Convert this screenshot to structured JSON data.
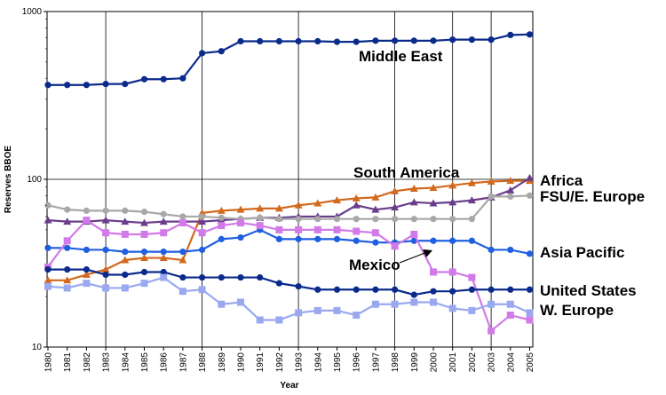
{
  "chart_data": {
    "type": "line",
    "title": "",
    "xlabel": "Year",
    "ylabel": "Reserves BBOE",
    "yscale": "log",
    "ylim": [
      10,
      1000
    ],
    "y_ticks": [
      "10",
      "100",
      "1000"
    ],
    "grid": "vertical major lines",
    "legend": "direct labels on chart",
    "x": [
      "1980",
      "1981",
      "1982",
      "1983",
      "1984",
      "1985",
      "1986",
      "1987",
      "1988",
      "1989",
      "1990",
      "1991",
      "1992",
      "1993",
      "1994",
      "1995",
      "1996",
      "1997",
      "1998",
      "1999",
      "2000",
      "2001",
      "2002",
      "2003",
      "2004",
      "2005"
    ],
    "series": [
      {
        "name": "Middle East",
        "color": "#0a2a8c",
        "marker": "circle",
        "values": [
          365,
          365,
          365,
          370,
          370,
          395,
          395,
          400,
          565,
          580,
          665,
          665,
          665,
          665,
          665,
          660,
          660,
          670,
          670,
          670,
          670,
          680,
          680,
          680,
          725,
          730
        ]
      },
      {
        "name": "South America",
        "color": "#d2691e",
        "marker": "triangle",
        "values": [
          25,
          25,
          27,
          29,
          33,
          34,
          34,
          33,
          63,
          65,
          66,
          67,
          67,
          70,
          72,
          75,
          77,
          78,
          85,
          88,
          89,
          92,
          95,
          97,
          98,
          98
        ]
      },
      {
        "name": "Africa",
        "color": "#6a3d8c",
        "marker": "triangle",
        "values": [
          57,
          56,
          56,
          57,
          56,
          55,
          56,
          56,
          56,
          57,
          58,
          59,
          59,
          60,
          60,
          60,
          70,
          66,
          68,
          73,
          72,
          73,
          75,
          78,
          86,
          102
        ]
      },
      {
        "name": "FSU/E. Europe",
        "color": "#a8a8a8",
        "marker": "circle",
        "values": [
          70,
          66,
          65,
          65,
          65,
          64,
          62,
          60,
          60,
          59,
          58,
          59,
          58,
          58,
          58,
          58,
          58,
          58,
          58,
          58,
          58,
          58,
          58,
          79,
          79,
          80
        ]
      },
      {
        "name": "Asia Pacific",
        "color": "#1f5fe0",
        "marker": "circle",
        "values": [
          39,
          39,
          38,
          38,
          37,
          37,
          37,
          37,
          38,
          44,
          45,
          50,
          44,
          44,
          44,
          44,
          43,
          42,
          42,
          43,
          43,
          43,
          43,
          38,
          38,
          36
        ]
      },
      {
        "name": "Mexico",
        "color": "#d27ae8",
        "marker": "square",
        "values": [
          30,
          43,
          57,
          48,
          47,
          47,
          48,
          55,
          48,
          53,
          55,
          53,
          50,
          50,
          50,
          50,
          49,
          48,
          40,
          47,
          28,
          28,
          26,
          12.5,
          15.5,
          14.5
        ]
      },
      {
        "name": "United States",
        "color": "#0a2a8c",
        "marker": "circle",
        "values": [
          29,
          29,
          29,
          27,
          27,
          28,
          28,
          26,
          26,
          26,
          26,
          26,
          24,
          23,
          22,
          22,
          22,
          22,
          22,
          20.5,
          21.5,
          21.5,
          22,
          22,
          22,
          22
        ]
      },
      {
        "name": "W. Europe",
        "color": "#9aa8f0",
        "marker": "square",
        "values": [
          23,
          22.5,
          24,
          22.5,
          22.5,
          24,
          26,
          21.5,
          22,
          18,
          18.5,
          14.5,
          14.5,
          16,
          16.5,
          16.5,
          15.5,
          18,
          18,
          18.5,
          18.5,
          17,
          16.5,
          18,
          18,
          16
        ]
      }
    ],
    "annotations": [
      {
        "text": "Middle East"
      },
      {
        "text": "South America"
      },
      {
        "text": "Africa"
      },
      {
        "text": "FSU/E. Europe"
      },
      {
        "text": "Asia Pacific"
      },
      {
        "text": "Mexico"
      },
      {
        "text": "United States"
      },
      {
        "text": "W. Europe"
      }
    ]
  }
}
